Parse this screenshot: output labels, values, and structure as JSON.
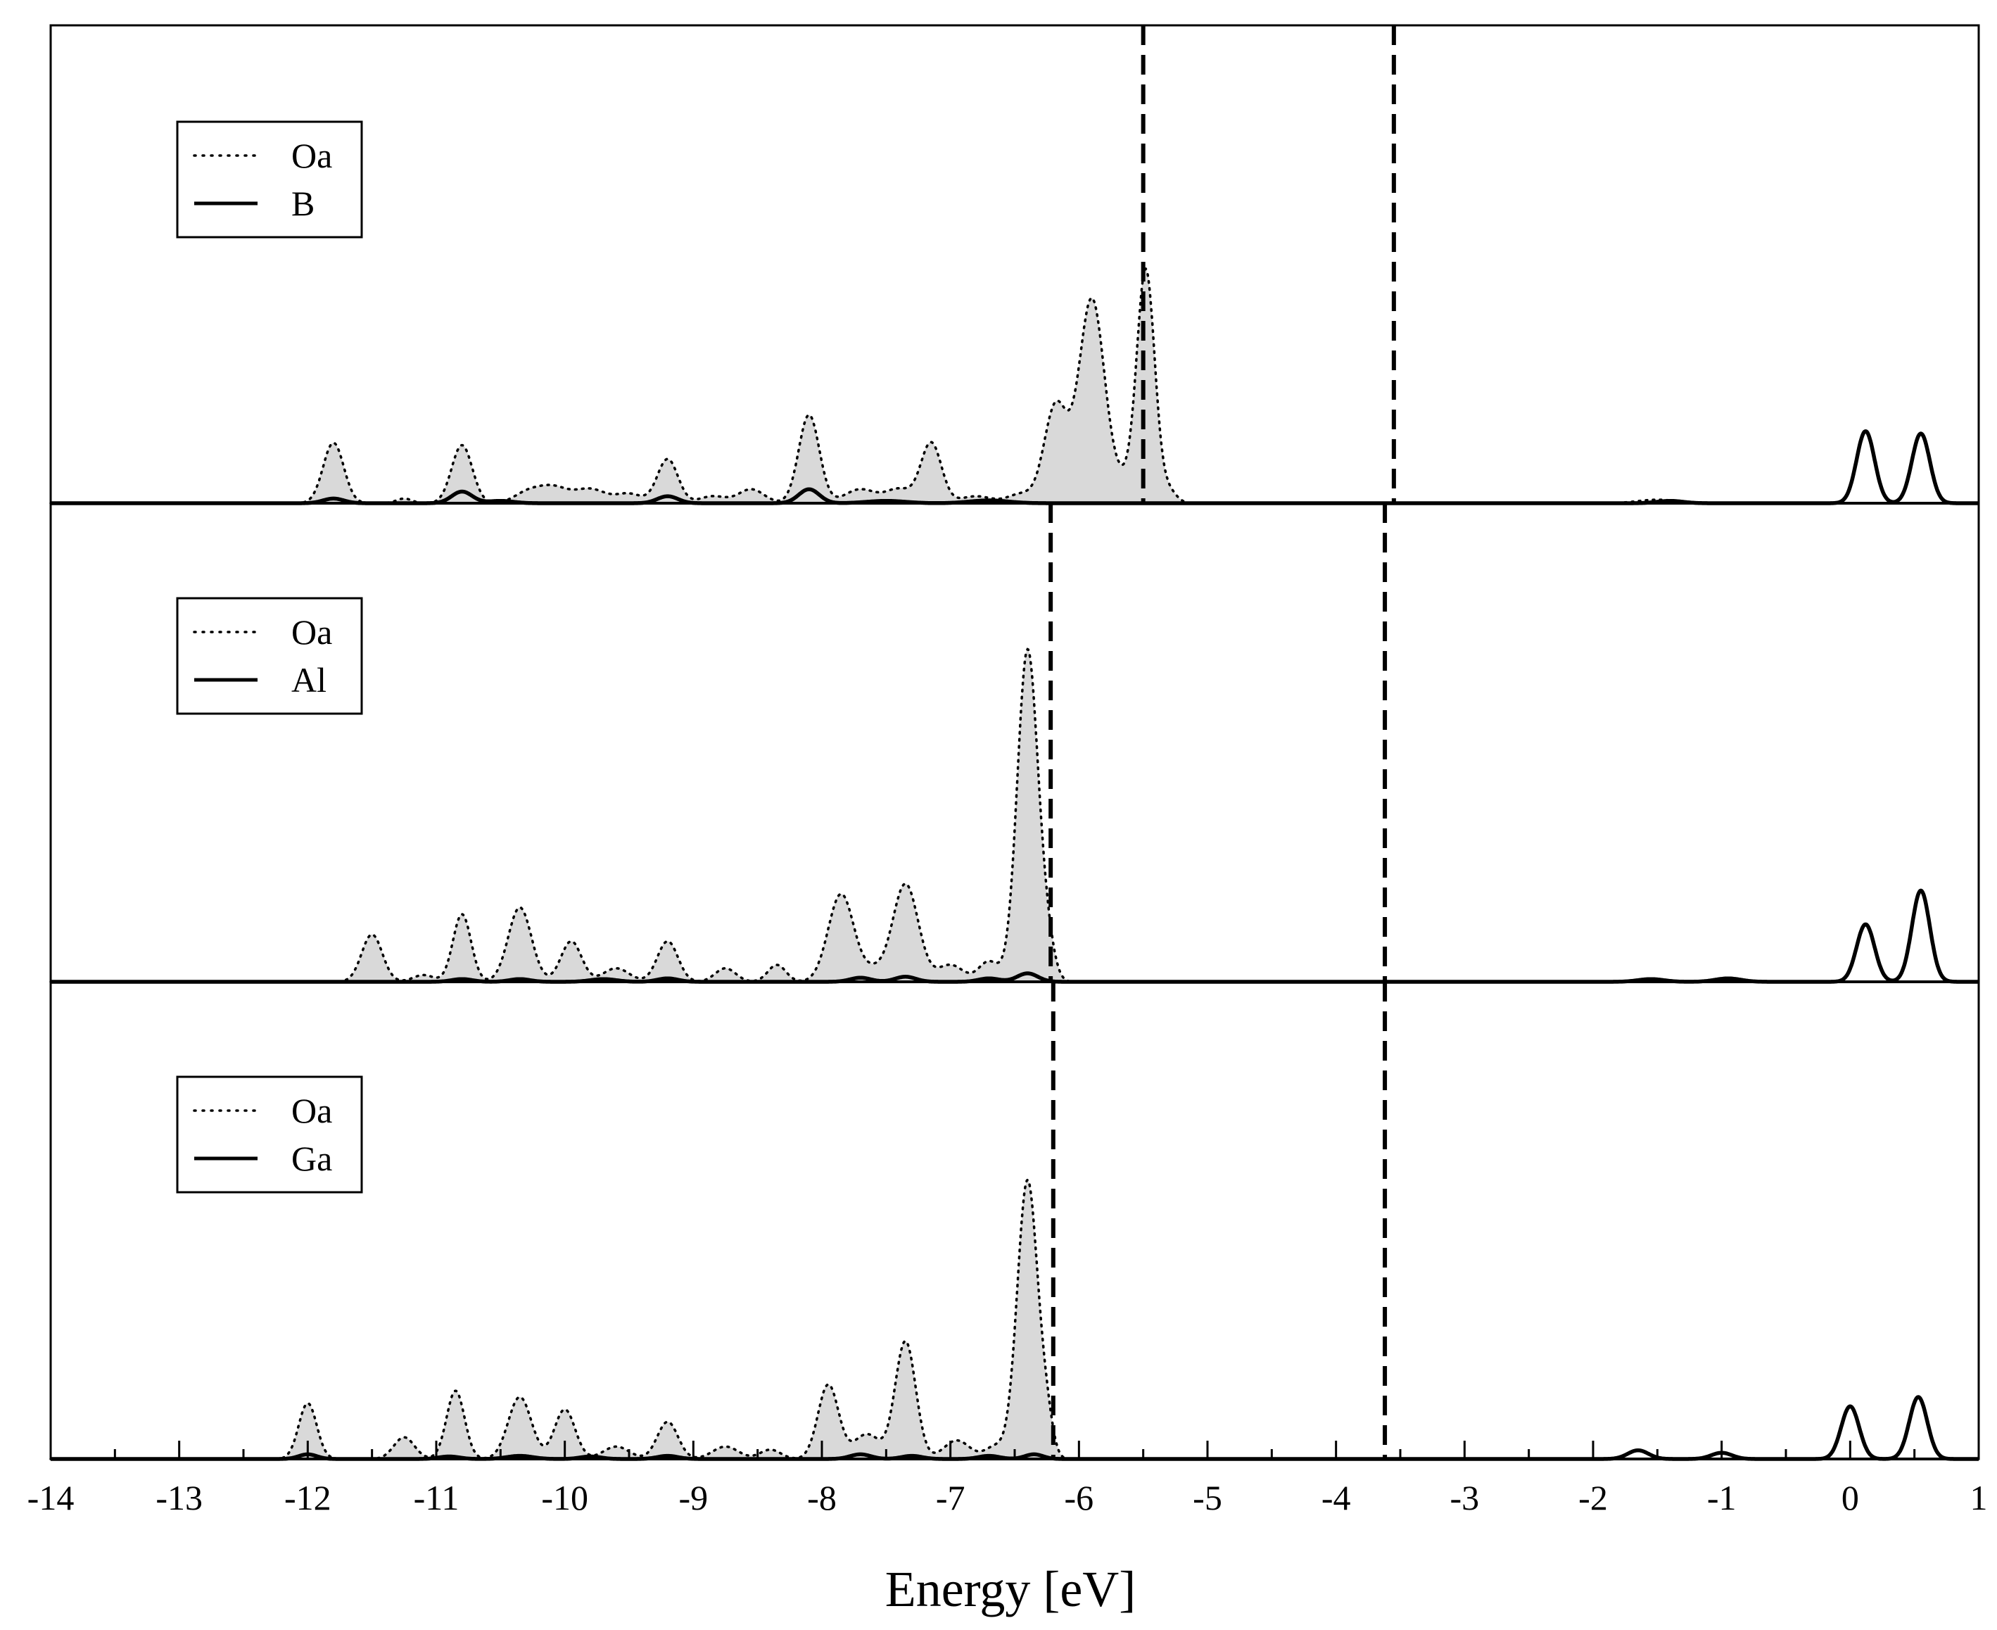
{
  "chart_data": {
    "type": "area",
    "xlabel": "Energy [eV]",
    "xlim": [
      -14,
      1
    ],
    "x_ticks": [
      "-14",
      "-13",
      "-12",
      "-11",
      "-10",
      "-9",
      "-8",
      "-7",
      "-6",
      "-5",
      "-4",
      "-3",
      "-2",
      "-1",
      "0",
      "1"
    ],
    "grid": false,
    "legend_position": "top-left",
    "colors": {
      "fill": "#d9d9d9",
      "line": "#000000"
    },
    "panels": [
      {
        "ymax": 1.0,
        "dashed_lines_x": [
          -5.5,
          -3.55
        ],
        "legend": [
          "Oa",
          "B"
        ],
        "series": [
          {
            "name": "Oa",
            "style": "dotted-filled",
            "peaks": [
              [
                -11.8,
                0.26,
                0.08
              ],
              [
                -11.25,
                0.02,
                0.06
              ],
              [
                -10.8,
                0.25,
                0.08
              ],
              [
                -10.3,
                0.04,
                0.1
              ],
              [
                -10.1,
                0.07,
                0.12
              ],
              [
                -9.8,
                0.06,
                0.12
              ],
              [
                -9.5,
                0.04,
                0.1
              ],
              [
                -9.2,
                0.19,
                0.08
              ],
              [
                -8.85,
                0.03,
                0.1
              ],
              [
                -8.55,
                0.06,
                0.1
              ],
              [
                -8.1,
                0.38,
                0.08
              ],
              [
                -7.7,
                0.06,
                0.12
              ],
              [
                -7.4,
                0.06,
                0.1
              ],
              [
                -7.15,
                0.26,
                0.08
              ],
              [
                -6.8,
                0.03,
                0.12
              ],
              [
                -6.45,
                0.04,
                0.1
              ],
              [
                -6.18,
                0.42,
                0.09
              ],
              [
                -5.9,
                0.88,
                0.1
              ],
              [
                -5.65,
                0.08,
                0.08
              ],
              [
                -5.48,
                1.0,
                0.07
              ],
              [
                -5.3,
                0.05,
                0.06
              ],
              [
                -1.5,
                0.015,
                0.15
              ]
            ]
          },
          {
            "name": "B",
            "style": "solid",
            "peaks": [
              [
                -11.8,
                0.02,
                0.08
              ],
              [
                -10.8,
                0.05,
                0.08
              ],
              [
                -10.5,
                0.01,
                0.1
              ],
              [
                -9.2,
                0.03,
                0.08
              ],
              [
                -8.1,
                0.06,
                0.08
              ],
              [
                -7.5,
                0.01,
                0.15
              ],
              [
                -6.7,
                0.012,
                0.15
              ],
              [
                -1.4,
                0.01,
                0.1
              ],
              [
                0.12,
                0.31,
                0.07
              ],
              [
                0.55,
                0.3,
                0.07
              ]
            ]
          }
        ]
      },
      {
        "ymax": 1.0,
        "dashed_lines_x": [
          -6.22,
          -3.62
        ],
        "legend": [
          "Oa",
          "Al"
        ],
        "series": [
          {
            "name": "Oa",
            "style": "dotted-filled",
            "peaks": [
              [
                -11.5,
                0.14,
                0.08
              ],
              [
                -11.1,
                0.02,
                0.08
              ],
              [
                -10.8,
                0.2,
                0.07
              ],
              [
                -10.35,
                0.22,
                0.09
              ],
              [
                -9.95,
                0.12,
                0.08
              ],
              [
                -9.6,
                0.04,
                0.1
              ],
              [
                -9.2,
                0.12,
                0.08
              ],
              [
                -8.75,
                0.04,
                0.08
              ],
              [
                -8.35,
                0.05,
                0.07
              ],
              [
                -7.85,
                0.26,
                0.1
              ],
              [
                -7.6,
                0.03,
                0.08
              ],
              [
                -7.35,
                0.29,
                0.1
              ],
              [
                -7.0,
                0.05,
                0.1
              ],
              [
                -6.7,
                0.06,
                0.08
              ],
              [
                -6.4,
                0.98,
                0.08
              ],
              [
                -6.25,
                0.1,
                0.06
              ]
            ]
          },
          {
            "name": "Al",
            "style": "solid",
            "peaks": [
              [
                -10.8,
                0.008,
                0.08
              ],
              [
                -10.35,
                0.008,
                0.08
              ],
              [
                -9.7,
                0.008,
                0.1
              ],
              [
                -9.2,
                0.01,
                0.08
              ],
              [
                -7.7,
                0.012,
                0.08
              ],
              [
                -7.35,
                0.015,
                0.08
              ],
              [
                -6.7,
                0.01,
                0.08
              ],
              [
                -6.4,
                0.025,
                0.08
              ],
              [
                -1.55,
                0.008,
                0.1
              ],
              [
                -0.95,
                0.01,
                0.1
              ],
              [
                0.12,
                0.17,
                0.07
              ],
              [
                0.55,
                0.27,
                0.07
              ]
            ]
          }
        ]
      },
      {
        "ymax": 1.0,
        "dashed_lines_x": [
          -6.2,
          -3.62
        ],
        "legend": [
          "Oa",
          "Ga"
        ],
        "series": [
          {
            "name": "Oa",
            "style": "dotted-filled",
            "peaks": [
              [
                -12.0,
                0.18,
                0.07
              ],
              [
                -11.25,
                0.07,
                0.08
              ],
              [
                -10.85,
                0.22,
                0.07
              ],
              [
                -10.35,
                0.2,
                0.09
              ],
              [
                -10.0,
                0.16,
                0.08
              ],
              [
                -9.6,
                0.04,
                0.1
              ],
              [
                -9.2,
                0.12,
                0.08
              ],
              [
                -8.75,
                0.04,
                0.1
              ],
              [
                -8.4,
                0.03,
                0.08
              ],
              [
                -7.95,
                0.24,
                0.08
              ],
              [
                -7.65,
                0.08,
                0.1
              ],
              [
                -7.35,
                0.38,
                0.08
              ],
              [
                -6.95,
                0.06,
                0.1
              ],
              [
                -6.65,
                0.04,
                0.08
              ],
              [
                -6.4,
                0.9,
                0.08
              ],
              [
                -6.25,
                0.1,
                0.05
              ]
            ]
          },
          {
            "name": "Ga",
            "style": "solid",
            "peaks": [
              [
                -12.0,
                0.015,
                0.07
              ],
              [
                -10.9,
                0.008,
                0.08
              ],
              [
                -10.35,
                0.01,
                0.1
              ],
              [
                -9.8,
                0.008,
                0.08
              ],
              [
                -9.2,
                0.01,
                0.08
              ],
              [
                -7.7,
                0.015,
                0.08
              ],
              [
                -7.3,
                0.01,
                0.08
              ],
              [
                -6.7,
                0.01,
                0.08
              ],
              [
                -6.35,
                0.015,
                0.07
              ],
              [
                -1.65,
                0.028,
                0.08
              ],
              [
                -1.0,
                0.02,
                0.08
              ],
              [
                0.0,
                0.17,
                0.07
              ],
              [
                0.53,
                0.2,
                0.07
              ]
            ]
          }
        ]
      }
    ]
  }
}
